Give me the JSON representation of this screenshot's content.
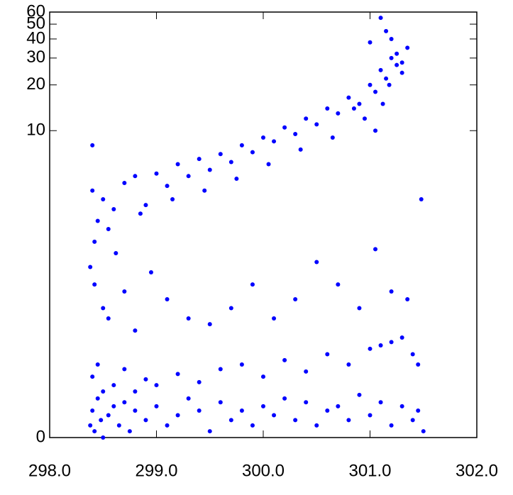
{
  "chart_data": {
    "type": "scatter",
    "color": "#0000ff",
    "yscale": "log",
    "xlim": [
      298,
      302
    ],
    "ylim": [
      0,
      60
    ],
    "xticks": [
      {
        "value": 298,
        "label": "298.0"
      },
      {
        "value": 299,
        "label": "299.0"
      },
      {
        "value": 300,
        "label": "300.0"
      },
      {
        "value": 301,
        "label": "301.0"
      },
      {
        "value": 302,
        "label": "302.0"
      }
    ],
    "yticks": [
      0,
      10,
      20,
      30,
      40,
      50,
      60
    ],
    "x": [
      298.38,
      298.4,
      298.42,
      298.45,
      298.48,
      298.5,
      298.55,
      298.6,
      298.65,
      298.7,
      298.75,
      298.8,
      298.9,
      299.0,
      299.1,
      299.2,
      299.3,
      299.4,
      299.5,
      299.6,
      299.7,
      299.8,
      299.9,
      300.0,
      300.1,
      300.2,
      300.3,
      300.4,
      300.5,
      300.6,
      300.7,
      300.8,
      300.9,
      301.0,
      301.1,
      301.2,
      301.3,
      301.4,
      301.45,
      301.5,
      298.4,
      298.45,
      298.5,
      298.6,
      298.7,
      298.8,
      298.9,
      299.0,
      299.2,
      299.4,
      299.6,
      299.8,
      300.0,
      300.2,
      300.4,
      300.6,
      300.8,
      301.0,
      301.1,
      301.2,
      301.3,
      301.4,
      301.45,
      298.38,
      298.42,
      298.5,
      298.55,
      298.62,
      298.7,
      298.8,
      298.95,
      299.1,
      299.3,
      299.5,
      299.7,
      299.9,
      300.1,
      300.3,
      300.5,
      300.7,
      300.9,
      301.05,
      301.2,
      301.35,
      298.4,
      298.45,
      298.5,
      298.6,
      298.7,
      298.8,
      298.9,
      299.0,
      299.1,
      299.2,
      299.3,
      299.4,
      299.5,
      299.6,
      299.7,
      299.8,
      299.9,
      300.0,
      300.1,
      300.2,
      300.3,
      300.4,
      300.5,
      300.6,
      300.7,
      300.8,
      300.9,
      301.0,
      301.05,
      301.1,
      301.15,
      301.2,
      301.25,
      301.3,
      301.35,
      301.48,
      298.42,
      298.55,
      298.85,
      299.15,
      299.45,
      299.75,
      300.05,
      300.35,
      300.65,
      300.95,
      301.0,
      301.1,
      301.15,
      301.2,
      301.25,
      301.3,
      301.05,
      301.12,
      301.18,
      300.85,
      298.4
    ],
    "values": [
      0.02,
      0.05,
      0.01,
      0.08,
      0.03,
      0.0,
      0.04,
      0.06,
      0.02,
      0.07,
      0.01,
      0.05,
      0.03,
      0.06,
      0.02,
      0.04,
      0.08,
      0.05,
      0.01,
      0.07,
      0.03,
      0.05,
      0.02,
      0.06,
      0.04,
      0.08,
      0.03,
      0.07,
      0.02,
      0.05,
      0.06,
      0.03,
      0.09,
      0.04,
      0.07,
      0.02,
      0.06,
      0.03,
      0.05,
      0.01,
      0.15,
      0.2,
      0.1,
      0.12,
      0.18,
      0.1,
      0.14,
      0.12,
      0.16,
      0.13,
      0.18,
      0.2,
      0.15,
      0.22,
      0.17,
      0.25,
      0.2,
      0.28,
      0.3,
      0.32,
      0.35,
      0.25,
      0.2,
      1.2,
      0.9,
      0.6,
      0.5,
      1.5,
      0.8,
      0.4,
      1.1,
      0.7,
      0.5,
      0.45,
      0.6,
      0.9,
      0.5,
      0.7,
      1.3,
      0.9,
      0.6,
      1.6,
      0.8,
      0.7,
      4.0,
      2.5,
      3.5,
      3.0,
      4.5,
      5.0,
      3.2,
      5.2,
      4.3,
      6.0,
      5.0,
      6.5,
      5.5,
      7.0,
      6.2,
      8.0,
      7.2,
      9.0,
      8.5,
      10.5,
      9.5,
      12.0,
      11.0,
      14.0,
      13.0,
      16.5,
      15.0,
      20.0,
      18.0,
      25.0,
      22.0,
      30.0,
      27.0,
      24.0,
      35.0,
      3.5,
      1.8,
      2.2,
      2.8,
      3.5,
      4.0,
      4.8,
      6.0,
      7.5,
      9.0,
      12.0,
      38.0,
      55.0,
      45.0,
      40.0,
      32.0,
      28.0,
      10.0,
      15.0,
      20.0,
      14.0,
      8.0
    ]
  }
}
